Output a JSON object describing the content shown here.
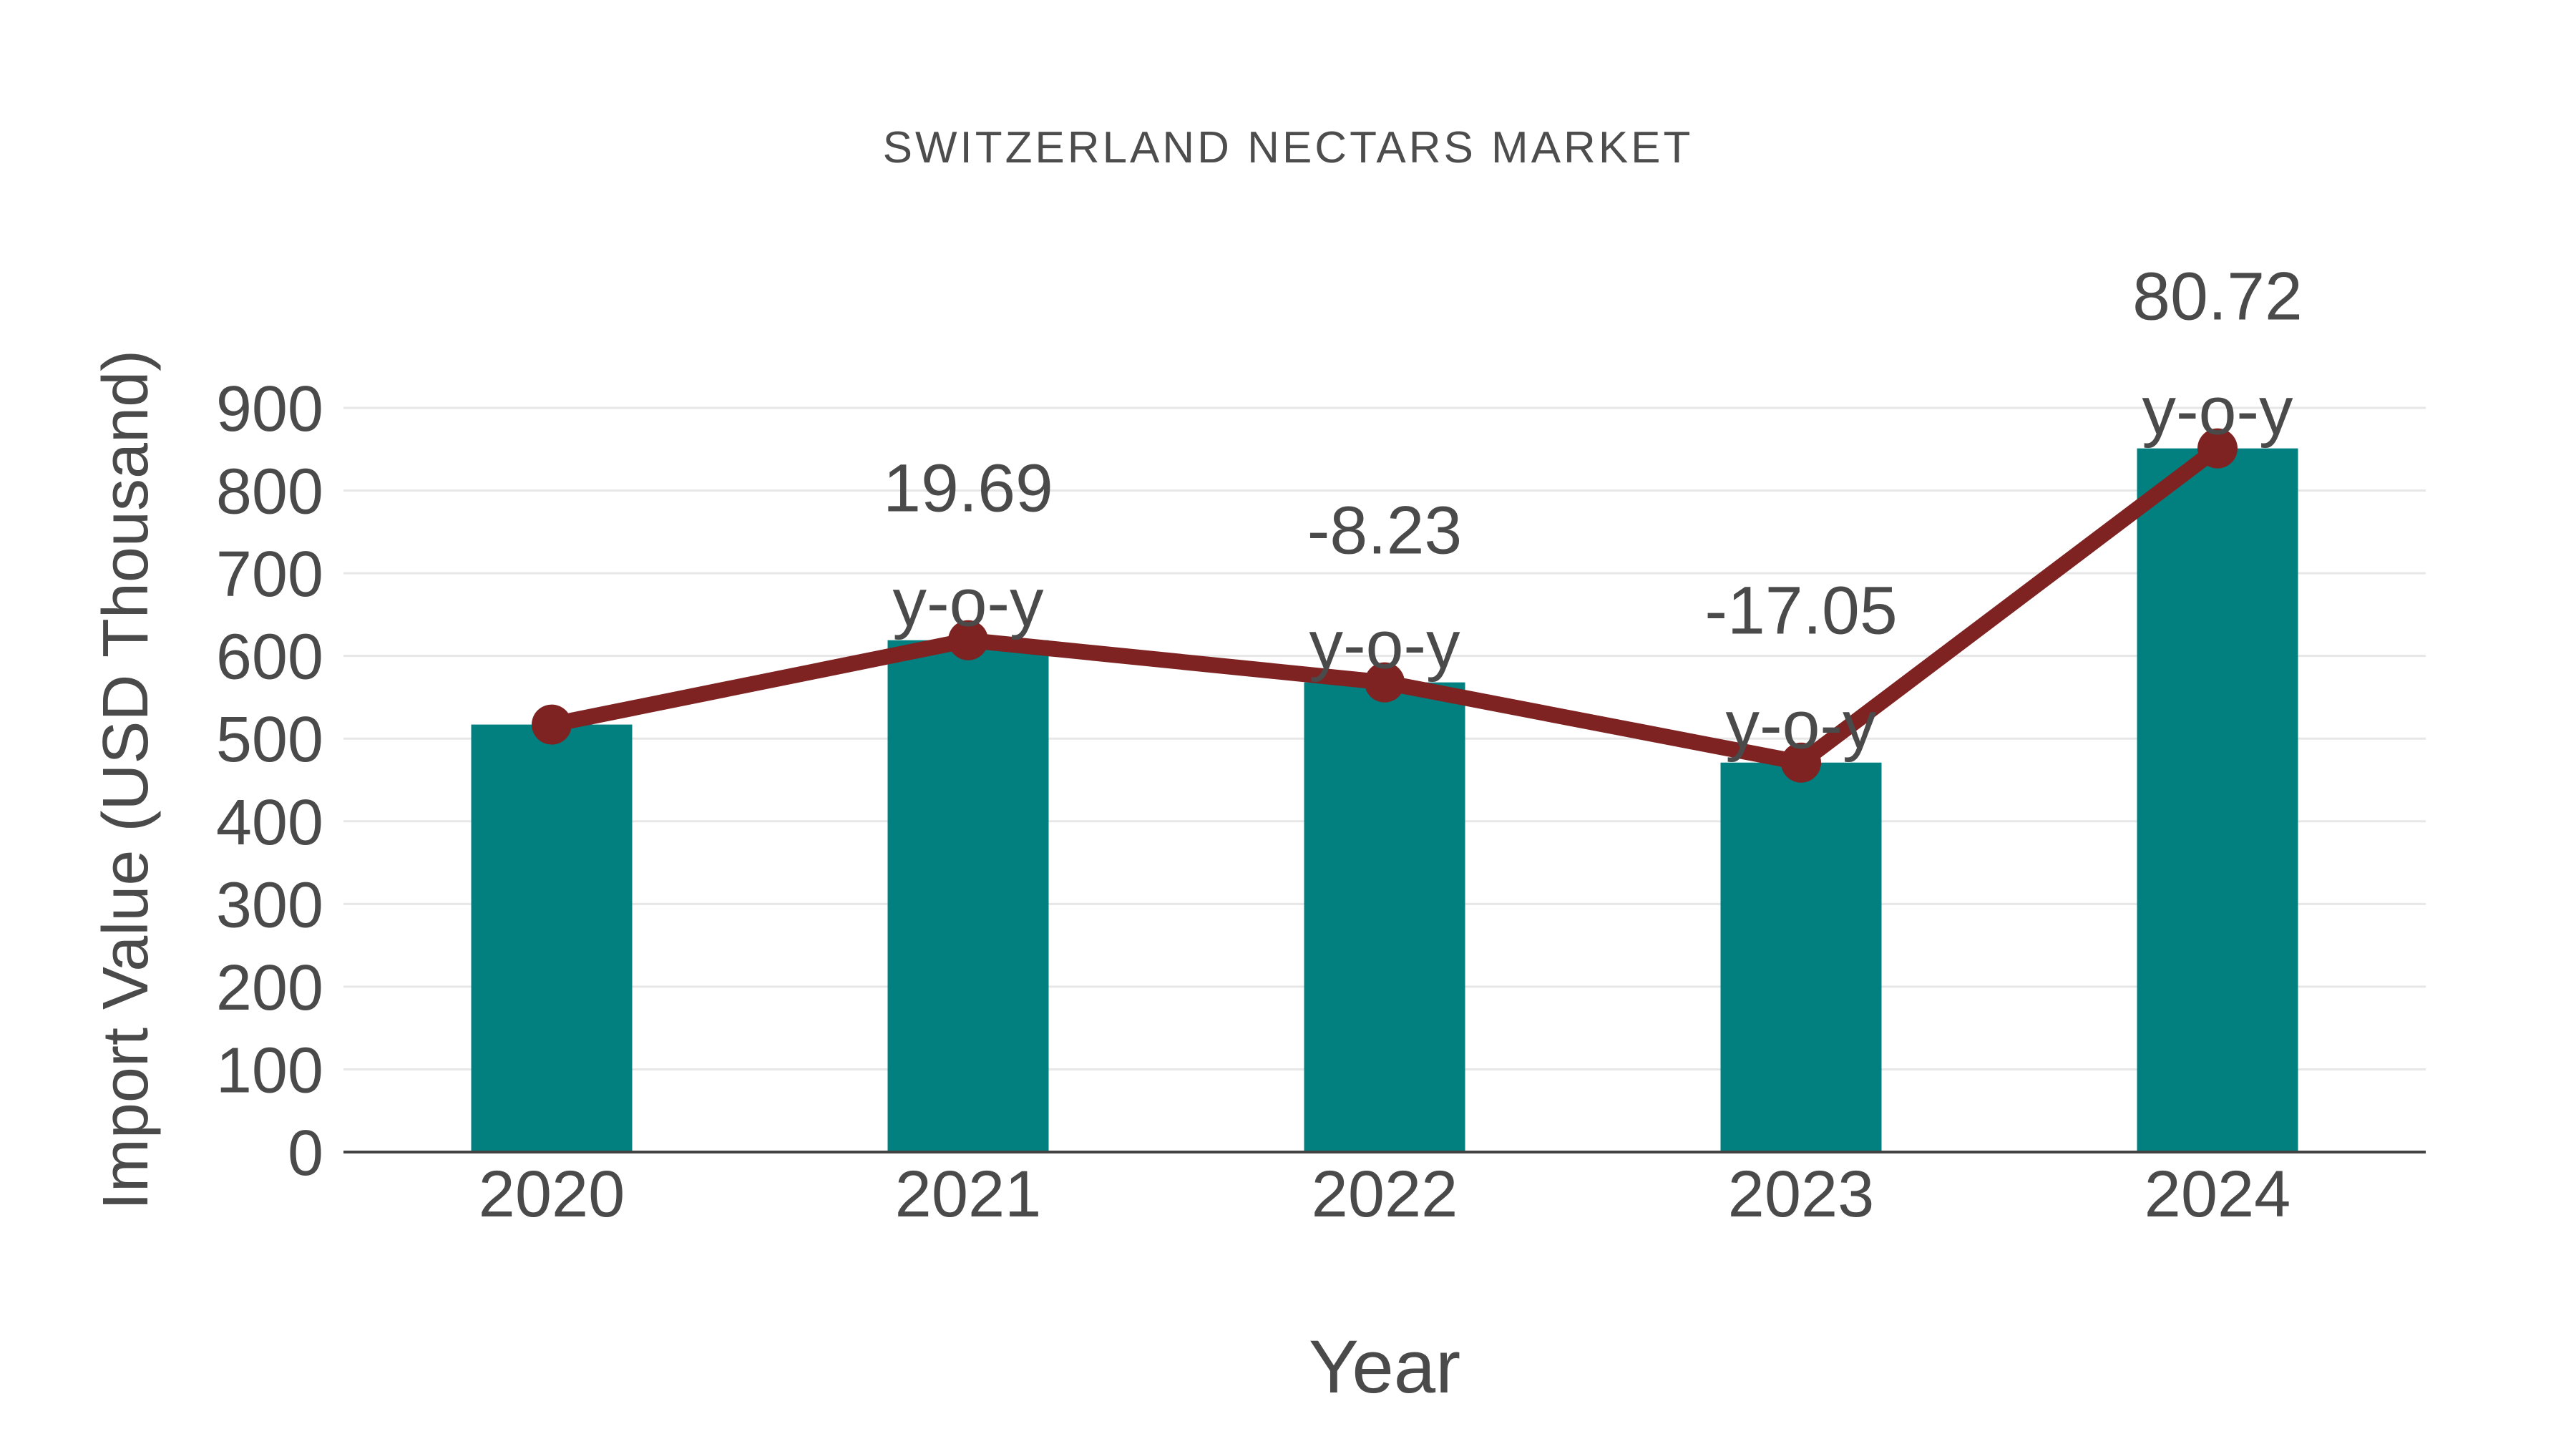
{
  "title": "SWITZERLAND NECTARS MARKET",
  "colors": {
    "background": "#FFFFFF",
    "grid": "#E7E7E7",
    "axis": "#424242",
    "text": "#4A4A4A",
    "bar": "#028080",
    "line": "#7E2222"
  },
  "chart_data": {
    "type": "bar",
    "title": "SWITZERLAND NECTARS MARKET",
    "xlabel": "Year",
    "ylabel": "Import Value (USD Thousand)",
    "categories": [
      "2020",
      "2021",
      "2022",
      "2023",
      "2024"
    ],
    "series": [
      {
        "name": "Import Value bars",
        "type": "bar",
        "color": "#028080",
        "values": [
          517,
          619,
          568,
          471,
          851
        ]
      },
      {
        "name": "Import Value trend line",
        "type": "line",
        "color": "#7E2222",
        "values": [
          517,
          619,
          568,
          471,
          851
        ]
      }
    ],
    "annotations": [
      {
        "category": "2021",
        "value_label": "19.69",
        "suffix_label": "y-o-y"
      },
      {
        "category": "2022",
        "value_label": "-8.23",
        "suffix_label": "y-o-y"
      },
      {
        "category": "2023",
        "value_label": "-17.05",
        "suffix_label": "y-o-y"
      },
      {
        "category": "2024",
        "value_label": "80.72",
        "suffix_label": "y-o-y"
      }
    ],
    "ylim": [
      0,
      900
    ],
    "yticks": [
      0,
      100,
      200,
      300,
      400,
      500,
      600,
      700,
      800,
      900
    ],
    "grid": true,
    "legend": false
  }
}
